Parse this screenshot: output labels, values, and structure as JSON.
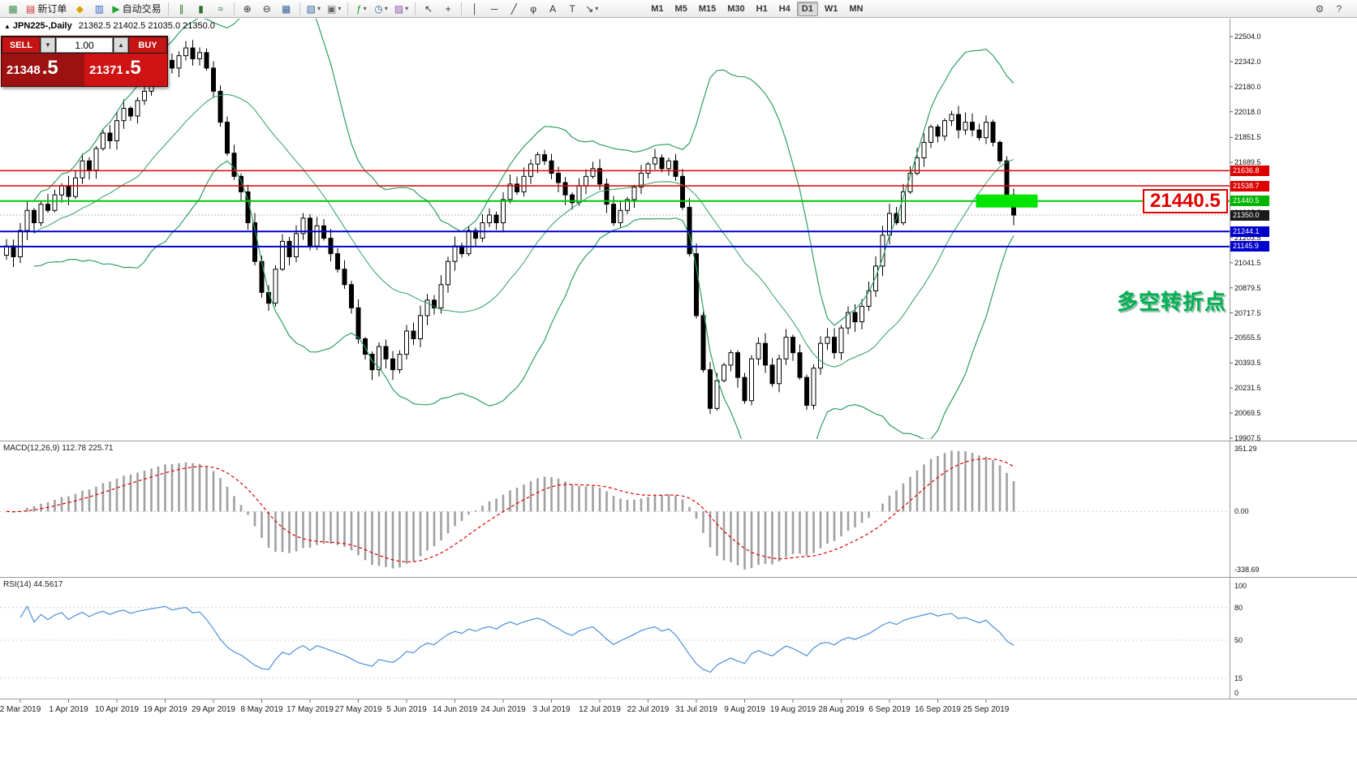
{
  "toolbar": {
    "groups": [
      {
        "items": [
          {
            "name": "chart-window-icon",
            "glyph": "▩",
            "color": "#3f8f4f"
          },
          {
            "name": "new-order-button",
            "glyph": "▤",
            "color": "#cc3333",
            "label": "新订单"
          },
          {
            "name": "market-watch-icon",
            "glyph": "◆",
            "color": "#d9a400"
          },
          {
            "name": "data-window-icon",
            "glyph": "▥",
            "color": "#3366cc"
          },
          {
            "name": "autotrading-button",
            "glyph": "▶",
            "color": "#1fa32a",
            "label": "自动交易"
          }
        ]
      },
      {
        "items": [
          {
            "name": "bar-chart-icon",
            "glyph": "∥",
            "color": "#2f6f2f"
          },
          {
            "name": "candlestick-chart-icon",
            "glyph": "▮",
            "color": "#2f6f2f"
          },
          {
            "name": "line-chart-icon",
            "glyph": "≈",
            "color": "#2f6f2f"
          }
        ]
      },
      {
        "items": [
          {
            "name": "zoom-in-icon",
            "glyph": "⊕",
            "color": "#333333"
          },
          {
            "name": "zoom-out-icon",
            "glyph": "⊖",
            "color": "#333333"
          },
          {
            "name": "tile-windows-icon",
            "glyph": "▦",
            "color": "#336699"
          }
        ]
      },
      {
        "items": [
          {
            "name": "charts-grid-icon",
            "glyph": "▧",
            "color": "#336699",
            "caret": true
          },
          {
            "name": "profiles-icon",
            "glyph": "▣",
            "color": "#666666",
            "caret": true
          }
        ]
      },
      {
        "items": [
          {
            "name": "indicators-icon",
            "glyph": "ƒ",
            "color": "#1fa32a",
            "caret": true
          },
          {
            "name": "periods-icon",
            "glyph": "◷",
            "color": "#336699",
            "caret": true
          },
          {
            "name": "templates-icon",
            "glyph": "▨",
            "color": "#8855aa",
            "caret": true
          }
        ]
      },
      {
        "items": [
          {
            "name": "cursor-icon",
            "glyph": "↖",
            "color": "#333333"
          },
          {
            "name": "crosshair-icon",
            "glyph": "+",
            "color": "#333333"
          }
        ]
      },
      {
        "items": [
          {
            "name": "vertical-line-icon",
            "glyph": "│",
            "color": "#333333"
          },
          {
            "name": "horizontal-line-icon",
            "glyph": "─",
            "color": "#333333"
          },
          {
            "name": "trendline-icon",
            "glyph": "╱",
            "color": "#333333"
          },
          {
            "name": "fibonacci-icon",
            "glyph": "φ",
            "color": "#333333"
          },
          {
            "name": "text-tool-icon",
            "glyph": "A",
            "color": "#333333"
          },
          {
            "name": "text-label-icon",
            "glyph": "T",
            "color": "#333333"
          },
          {
            "name": "arrows-tool-icon",
            "glyph": "↘",
            "color": "#333333",
            "caret": true
          }
        ]
      }
    ],
    "timeframes": {
      "items": [
        "M1",
        "M5",
        "M15",
        "M30",
        "H1",
        "H4",
        "D1",
        "W1",
        "MN"
      ],
      "active": "D1"
    },
    "right_items": [
      {
        "name": "settings-icon",
        "glyph": "⚙",
        "color": "#555555"
      },
      {
        "name": "help-icon",
        "glyph": "?",
        "color": "#555555"
      }
    ]
  },
  "chart": {
    "symbol_marker": "▲",
    "title": "JPN225-,Daily",
    "ohlc": "21362.5 21402.5 21035.0 21350.0"
  },
  "trade_panel": {
    "sell_label": "SELL",
    "buy_label": "BUY",
    "volume": "1.00",
    "decrease_glyph": "▼",
    "increase_glyph": "▲",
    "sell_price_main": "21348",
    "sell_price_frac": ".5",
    "buy_price_main": "21371",
    "buy_price_frac": ".5"
  },
  "price_axis": {
    "ticks": [
      "22504.0",
      "22342.0",
      "22180.0",
      "22018.0",
      "21851.5",
      "21689.5",
      "21527.5",
      "21365.5",
      "21203.5",
      "21041.5",
      "20879.5",
      "20717.5",
      "20555.5",
      "20393.5",
      "20231.5",
      "20069.5",
      "19907.5"
    ],
    "tags": [
      {
        "text": "21636.8",
        "color": "#dd0000"
      },
      {
        "text": "21538.7",
        "color": "#dd0000"
      },
      {
        "text": "21440.5",
        "color": "#00b400"
      },
      {
        "text": "21350.0",
        "color": "#1a1a1a"
      },
      {
        "text": "21244.1",
        "color": "#0000cc"
      },
      {
        "text": "21145.9",
        "color": "#0000cc"
      }
    ]
  },
  "macd": {
    "label": "MACD(12,26,9) 112.78 225.71",
    "axis": [
      "351.29",
      "0.00",
      "-338.69"
    ]
  },
  "rsi": {
    "label": "RSI(14) 44.5617",
    "axis": [
      "100",
      "80",
      "50",
      "15",
      "0"
    ],
    "levels": [
      80,
      50,
      15
    ]
  },
  "annotations": {
    "big_price": "21440.5",
    "cn_text": "多空转折点"
  },
  "date_axis": {
    "labels": [
      "2 Mar 2019",
      "1 Apr 2019",
      "10 Apr 2019",
      "19 Apr 2019",
      "29 Apr 2019",
      "8 May 2019",
      "17 May 2019",
      "27 May 2019",
      "5 Jun 2019",
      "14 Jun 2019",
      "24 Jun 2019",
      "3 Jul 2019",
      "12 Jul 2019",
      "22 Jul 2019",
      "31 Jul 2019",
      "9 Aug 2019",
      "19 Aug 2019",
      "28 Aug 2019",
      "6 Sep 2019",
      "16 Sep 2019",
      "25 Sep 2019"
    ]
  },
  "chart_data": {
    "type": "candlestick",
    "symbol": "JPN225-",
    "period": "Daily",
    "price_range": [
      19907.5,
      22504.0
    ],
    "current_price": 21350.0,
    "closes": [
      21150,
      21080,
      21250,
      21380,
      21300,
      21420,
      21380,
      21480,
      21540,
      21470,
      21590,
      21700,
      21640,
      21780,
      21880,
      21830,
      21960,
      22040,
      21990,
      22090,
      22150,
      22220,
      22280,
      22350,
      22300,
      22380,
      22430,
      22360,
      22400,
      22300,
      22150,
      21950,
      21750,
      21600,
      21500,
      21300,
      21050,
      20850,
      20780,
      21000,
      21180,
      21080,
      21230,
      21330,
      21150,
      21280,
      21200,
      21100,
      21000,
      20900,
      20750,
      20550,
      20450,
      20350,
      20500,
      20420,
      20350,
      20450,
      20600,
      20550,
      20700,
      20800,
      20750,
      20900,
      21050,
      21150,
      21100,
      21250,
      21200,
      21300,
      21350,
      21300,
      21450,
      21550,
      21500,
      21600,
      21680,
      21740,
      21700,
      21620,
      21560,
      21480,
      21430,
      21540,
      21600,
      21650,
      21550,
      21420,
      21300,
      21380,
      21450,
      21530,
      21620,
      21680,
      21720,
      21650,
      21700,
      21600,
      21400,
      21100,
      20700,
      20350,
      20100,
      20280,
      20380,
      20460,
      20300,
      20150,
      20420,
      20520,
      20380,
      20260,
      20420,
      20560,
      20460,
      20300,
      20120,
      20360,
      20520,
      20560,
      20460,
      20620,
      20720,
      20660,
      20760,
      20860,
      21020,
      21220,
      21360,
      21300,
      21500,
      21620,
      21720,
      21820,
      21920,
      21860,
      21960,
      22000,
      21900,
      21950,
      21900,
      21850,
      21950,
      21820,
      21700,
      21480,
      21350
    ],
    "bollinger": {
      "period": 20,
      "deviation": 2
    },
    "hlines": [
      {
        "value": 21636.8,
        "color": "#dd0000",
        "width": 1.5
      },
      {
        "value": 21538.7,
        "color": "#dd0000",
        "width": 1.5
      },
      {
        "value": 21440.5,
        "color": "#00c800",
        "width": 2
      },
      {
        "value": 21244.1,
        "color": "#0000cc",
        "width": 2
      },
      {
        "value": 21145.9,
        "color": "#0000cc",
        "width": 2
      }
    ],
    "highlight": {
      "price": 21440.5,
      "from_index": 141,
      "to_index": 149,
      "color": "#00e400"
    },
    "indicators": [
      {
        "name": "MACD",
        "params": [
          12,
          26,
          9
        ],
        "values": [
          112.78,
          225.71
        ],
        "range": [
          -338.69,
          351.29
        ]
      },
      {
        "name": "RSI",
        "params": [
          14
        ],
        "value": 44.5617,
        "range": [
          0,
          100
        ]
      }
    ],
    "colors": {
      "up": "#ffffff",
      "down": "#000000",
      "bollinger": "#2e9e63",
      "macd_hist": "#a0a0a0",
      "macd_signal": "#dd0000",
      "rsi_line": "#4a90d9"
    }
  }
}
